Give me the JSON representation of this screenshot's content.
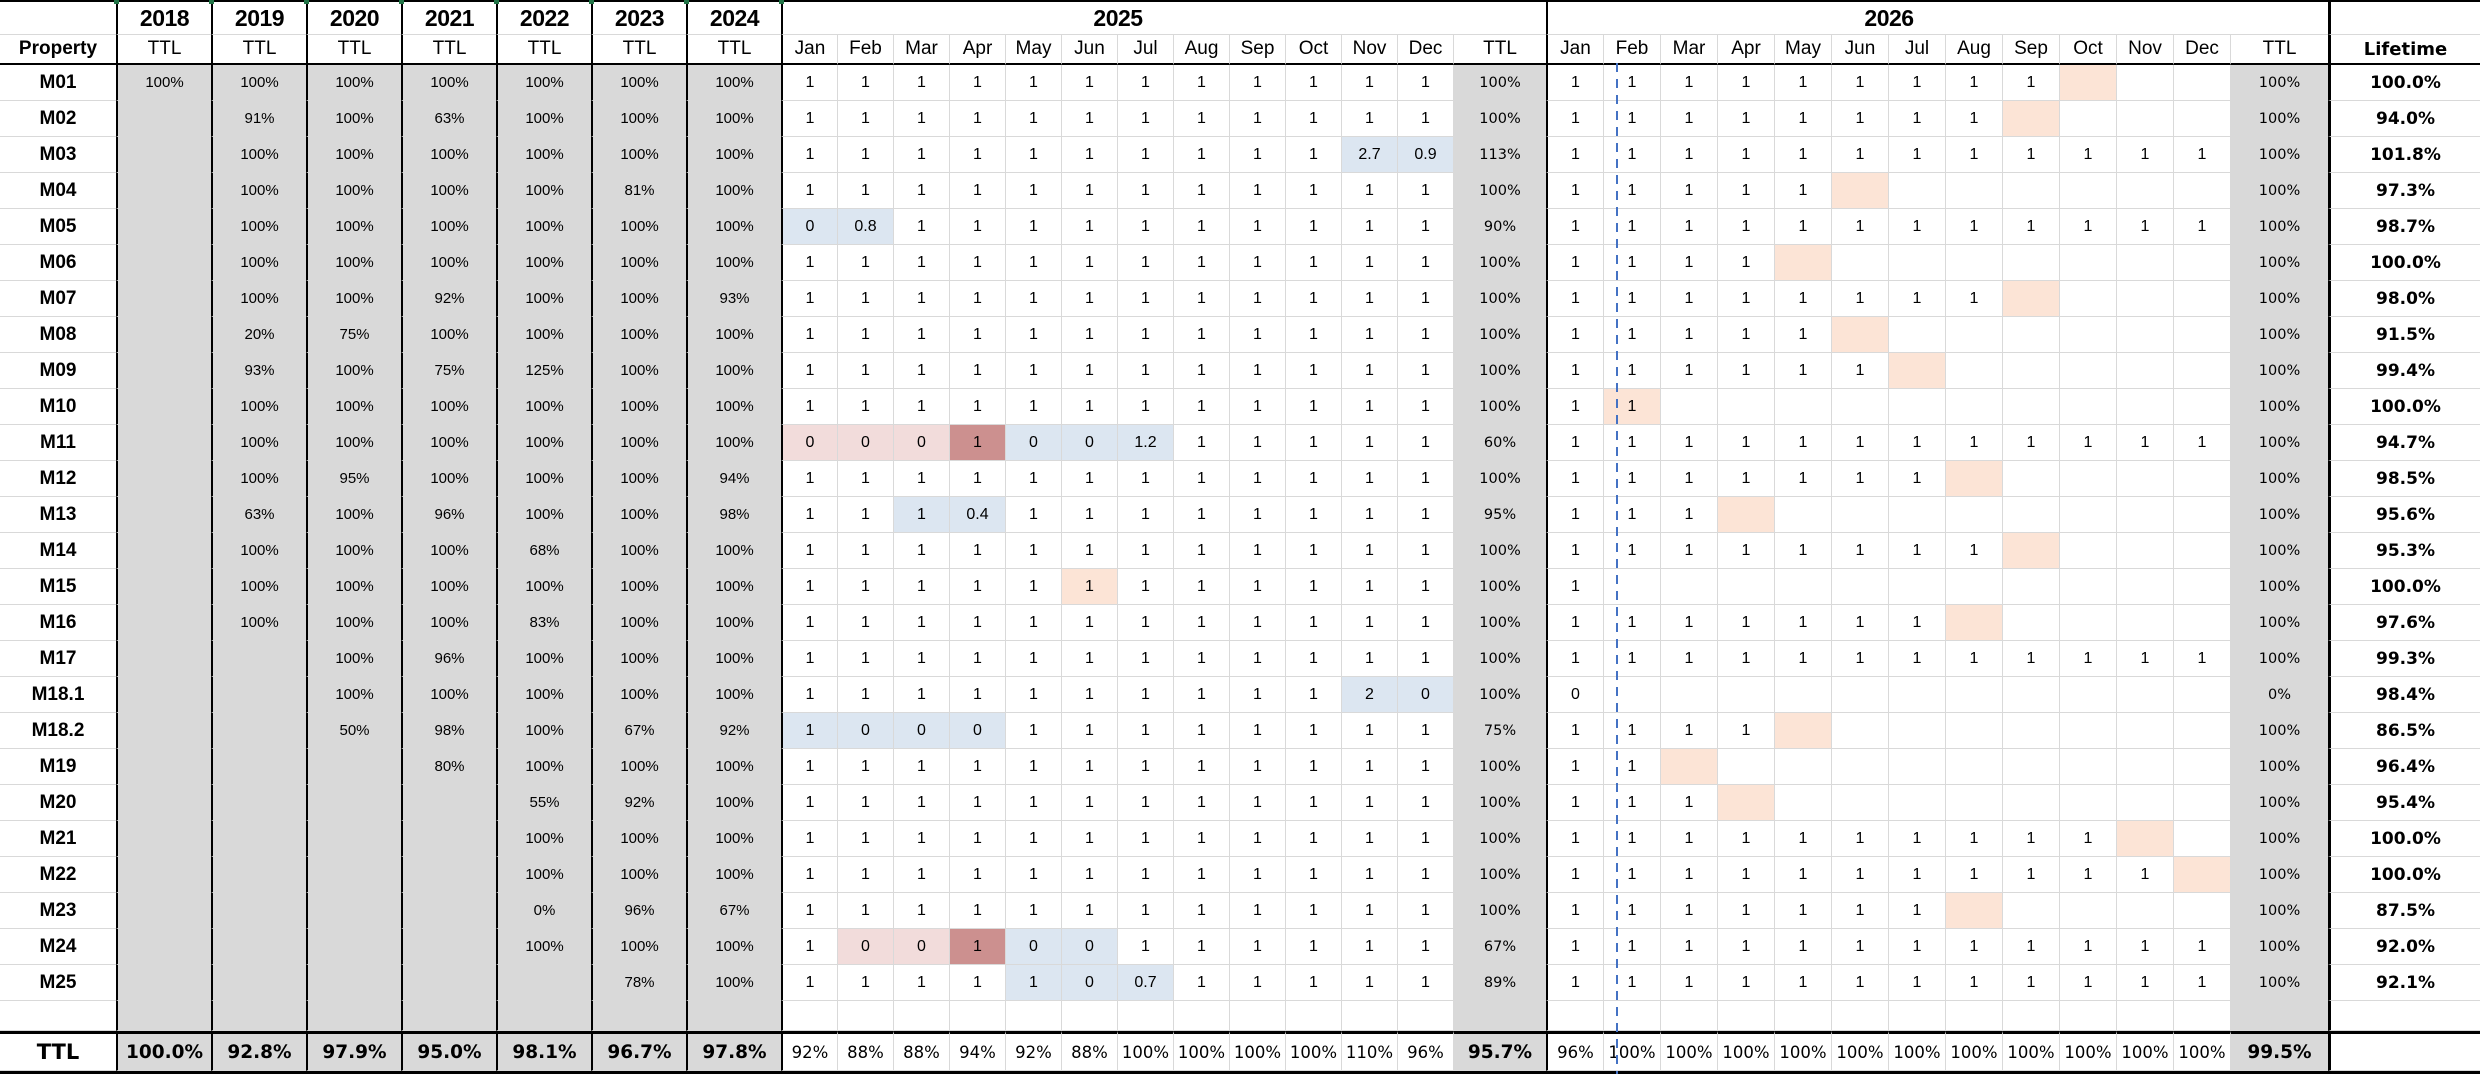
{
  "header": {
    "property": "Property",
    "years": [
      "2018",
      "2019",
      "2020",
      "2021",
      "2022",
      "2023",
      "2024"
    ],
    "year_sub": "TTL",
    "group_2025": "2025",
    "group_2026": "2026",
    "months": [
      "Jan",
      "Feb",
      "Mar",
      "Apr",
      "May",
      "Jun",
      "Jul",
      "Aug",
      "Sep",
      "Oct",
      "Nov",
      "Dec"
    ],
    "ttl": "TTL",
    "lifetime": "Lifetime"
  },
  "colors": {
    "blue": "#dce6f1",
    "pink": "#f2dcdb",
    "rose": "#cc908f",
    "peach": "#fce4d6",
    "dash": "#4472c4",
    "tick": "#217346"
  },
  "rows": [
    {
      "property": "M01",
      "years": [
        "100%",
        "100%",
        "100%",
        "100%",
        "100%",
        "100%",
        "100%"
      ],
      "m25": [
        "1",
        "1",
        "1",
        "1",
        "1",
        "1",
        "1",
        "1",
        "1",
        "1",
        "1",
        "1"
      ],
      "hl25": {},
      "ttl25": "100%",
      "m26": [
        "1",
        "1",
        "1",
        "1",
        "1",
        "1",
        "1",
        "1",
        "1",
        "",
        "",
        ""
      ],
      "hl26": {
        "9": "peach"
      },
      "ttl26": "100%",
      "life": "100.0%"
    },
    {
      "property": "M02",
      "years": [
        "",
        "91%",
        "100%",
        "63%",
        "100%",
        "100%",
        "100%"
      ],
      "m25": [
        "1",
        "1",
        "1",
        "1",
        "1",
        "1",
        "1",
        "1",
        "1",
        "1",
        "1",
        "1"
      ],
      "hl25": {},
      "ttl25": "100%",
      "m26": [
        "1",
        "1",
        "1",
        "1",
        "1",
        "1",
        "1",
        "1",
        "",
        "",
        "",
        ""
      ],
      "hl26": {
        "8": "peach"
      },
      "ttl26": "100%",
      "life": "94.0%"
    },
    {
      "property": "M03",
      "years": [
        "",
        "100%",
        "100%",
        "100%",
        "100%",
        "100%",
        "100%"
      ],
      "m25": [
        "1",
        "1",
        "1",
        "1",
        "1",
        "1",
        "1",
        "1",
        "1",
        "1",
        "2.7",
        "0.9"
      ],
      "hl25": {
        "10": "blue",
        "11": "blue"
      },
      "ttl25": "113%",
      "m26": [
        "1",
        "1",
        "1",
        "1",
        "1",
        "1",
        "1",
        "1",
        "1",
        "1",
        "1",
        "1"
      ],
      "hl26": {},
      "ttl26": "100%",
      "life": "101.8%"
    },
    {
      "property": "M04",
      "years": [
        "",
        "100%",
        "100%",
        "100%",
        "100%",
        "81%",
        "100%"
      ],
      "m25": [
        "1",
        "1",
        "1",
        "1",
        "1",
        "1",
        "1",
        "1",
        "1",
        "1",
        "1",
        "1"
      ],
      "hl25": {},
      "ttl25": "100%",
      "m26": [
        "1",
        "1",
        "1",
        "1",
        "1",
        "",
        "",
        "",
        "",
        "",
        "",
        ""
      ],
      "hl26": {
        "5": "peach"
      },
      "ttl26": "100%",
      "life": "97.3%"
    },
    {
      "property": "M05",
      "years": [
        "",
        "100%",
        "100%",
        "100%",
        "100%",
        "100%",
        "100%"
      ],
      "m25": [
        "0",
        "0.8",
        "1",
        "1",
        "1",
        "1",
        "1",
        "1",
        "1",
        "1",
        "1",
        "1"
      ],
      "hl25": {
        "0": "blue",
        "1": "blue"
      },
      "ttl25": "90%",
      "m26": [
        "1",
        "1",
        "1",
        "1",
        "1",
        "1",
        "1",
        "1",
        "1",
        "1",
        "1",
        "1"
      ],
      "hl26": {},
      "ttl26": "100%",
      "life": "98.7%"
    },
    {
      "property": "M06",
      "years": [
        "",
        "100%",
        "100%",
        "100%",
        "100%",
        "100%",
        "100%"
      ],
      "m25": [
        "1",
        "1",
        "1",
        "1",
        "1",
        "1",
        "1",
        "1",
        "1",
        "1",
        "1",
        "1"
      ],
      "hl25": {},
      "ttl25": "100%",
      "m26": [
        "1",
        "1",
        "1",
        "1",
        "",
        "",
        "",
        "",
        "",
        "",
        "",
        ""
      ],
      "hl26": {
        "4": "peach"
      },
      "ttl26": "100%",
      "life": "100.0%"
    },
    {
      "property": "M07",
      "years": [
        "",
        "100%",
        "100%",
        "92%",
        "100%",
        "100%",
        "93%"
      ],
      "m25": [
        "1",
        "1",
        "1",
        "1",
        "1",
        "1",
        "1",
        "1",
        "1",
        "1",
        "1",
        "1"
      ],
      "hl25": {},
      "ttl25": "100%",
      "m26": [
        "1",
        "1",
        "1",
        "1",
        "1",
        "1",
        "1",
        "1",
        "",
        "",
        "",
        ""
      ],
      "hl26": {
        "8": "peach"
      },
      "ttl26": "100%",
      "life": "98.0%"
    },
    {
      "property": "M08",
      "years": [
        "",
        "20%",
        "75%",
        "100%",
        "100%",
        "100%",
        "100%"
      ],
      "m25": [
        "1",
        "1",
        "1",
        "1",
        "1",
        "1",
        "1",
        "1",
        "1",
        "1",
        "1",
        "1"
      ],
      "hl25": {},
      "ttl25": "100%",
      "m26": [
        "1",
        "1",
        "1",
        "1",
        "1",
        "",
        "",
        "",
        "",
        "",
        "",
        ""
      ],
      "hl26": {
        "5": "peach"
      },
      "ttl26": "100%",
      "life": "91.5%"
    },
    {
      "property": "M09",
      "years": [
        "",
        "93%",
        "100%",
        "75%",
        "125%",
        "100%",
        "100%"
      ],
      "m25": [
        "1",
        "1",
        "1",
        "1",
        "1",
        "1",
        "1",
        "1",
        "1",
        "1",
        "1",
        "1"
      ],
      "hl25": {},
      "ttl25": "100%",
      "m26": [
        "1",
        "1",
        "1",
        "1",
        "1",
        "1",
        "",
        "",
        "",
        "",
        "",
        ""
      ],
      "hl26": {
        "6": "peach"
      },
      "ttl26": "100%",
      "life": "99.4%"
    },
    {
      "property": "M10",
      "years": [
        "",
        "100%",
        "100%",
        "100%",
        "100%",
        "100%",
        "100%"
      ],
      "m25": [
        "1",
        "1",
        "1",
        "1",
        "1",
        "1",
        "1",
        "1",
        "1",
        "1",
        "1",
        "1"
      ],
      "hl25": {},
      "ttl25": "100%",
      "m26": [
        "1",
        "1",
        "",
        "",
        "",
        "",
        "",
        "",
        "",
        "",
        "",
        ""
      ],
      "hl26": {
        "1": "peach"
      },
      "ttl26": "100%",
      "life": "100.0%"
    },
    {
      "property": "M11",
      "years": [
        "",
        "100%",
        "100%",
        "100%",
        "100%",
        "100%",
        "100%"
      ],
      "m25": [
        "0",
        "0",
        "0",
        "1",
        "0",
        "0",
        "1.2",
        "1",
        "1",
        "1",
        "1",
        "1"
      ],
      "hl25": {
        "0": "pink",
        "1": "pink",
        "2": "pink",
        "3": "rose",
        "4": "blue",
        "5": "blue",
        "6": "blue"
      },
      "ttl25": "60%",
      "m26": [
        "1",
        "1",
        "1",
        "1",
        "1",
        "1",
        "1",
        "1",
        "1",
        "1",
        "1",
        "1"
      ],
      "hl26": {},
      "ttl26": "100%",
      "life": "94.7%"
    },
    {
      "property": "M12",
      "years": [
        "",
        "100%",
        "95%",
        "100%",
        "100%",
        "100%",
        "94%"
      ],
      "m25": [
        "1",
        "1",
        "1",
        "1",
        "1",
        "1",
        "1",
        "1",
        "1",
        "1",
        "1",
        "1"
      ],
      "hl25": {},
      "ttl25": "100%",
      "m26": [
        "1",
        "1",
        "1",
        "1",
        "1",
        "1",
        "1",
        "",
        "",
        "",
        "",
        ""
      ],
      "hl26": {
        "7": "peach"
      },
      "ttl26": "100%",
      "life": "98.5%"
    },
    {
      "property": "M13",
      "years": [
        "",
        "63%",
        "100%",
        "96%",
        "100%",
        "100%",
        "98%"
      ],
      "m25": [
        "1",
        "1",
        "1",
        "0.4",
        "1",
        "1",
        "1",
        "1",
        "1",
        "1",
        "1",
        "1"
      ],
      "hl25": {
        "2": "blue",
        "3": "blue"
      },
      "ttl25": "95%",
      "m26": [
        "1",
        "1",
        "1",
        "",
        "",
        "",
        "",
        "",
        "",
        "",
        "",
        ""
      ],
      "hl26": {
        "3": "peach"
      },
      "ttl26": "100%",
      "life": "95.6%"
    },
    {
      "property": "M14",
      "years": [
        "",
        "100%",
        "100%",
        "100%",
        "68%",
        "100%",
        "100%"
      ],
      "m25": [
        "1",
        "1",
        "1",
        "1",
        "1",
        "1",
        "1",
        "1",
        "1",
        "1",
        "1",
        "1"
      ],
      "hl25": {},
      "ttl25": "100%",
      "m26": [
        "1",
        "1",
        "1",
        "1",
        "1",
        "1",
        "1",
        "1",
        "",
        "",
        "",
        ""
      ],
      "hl26": {
        "8": "peach"
      },
      "ttl26": "100%",
      "life": "95.3%"
    },
    {
      "property": "M15",
      "years": [
        "",
        "100%",
        "100%",
        "100%",
        "100%",
        "100%",
        "100%"
      ],
      "m25": [
        "1",
        "1",
        "1",
        "1",
        "1",
        "1",
        "1",
        "1",
        "1",
        "1",
        "1",
        "1"
      ],
      "hl25": {
        "5": "peach"
      },
      "ttl25": "100%",
      "m26": [
        "1",
        "",
        "",
        "",
        "",
        "",
        "",
        "",
        "",
        "",
        "",
        ""
      ],
      "hl26": {},
      "ttl26": "100%",
      "life": "100.0%"
    },
    {
      "property": "M16",
      "years": [
        "",
        "100%",
        "100%",
        "100%",
        "83%",
        "100%",
        "100%"
      ],
      "m25": [
        "1",
        "1",
        "1",
        "1",
        "1",
        "1",
        "1",
        "1",
        "1",
        "1",
        "1",
        "1"
      ],
      "hl25": {},
      "ttl25": "100%",
      "m26": [
        "1",
        "1",
        "1",
        "1",
        "1",
        "1",
        "1",
        "",
        "",
        "",
        "",
        ""
      ],
      "hl26": {
        "7": "peach"
      },
      "ttl26": "100%",
      "life": "97.6%"
    },
    {
      "property": "M17",
      "years": [
        "",
        "",
        "100%",
        "96%",
        "100%",
        "100%",
        "100%"
      ],
      "m25": [
        "1",
        "1",
        "1",
        "1",
        "1",
        "1",
        "1",
        "1",
        "1",
        "1",
        "1",
        "1"
      ],
      "hl25": {},
      "ttl25": "100%",
      "m26": [
        "1",
        "1",
        "1",
        "1",
        "1",
        "1",
        "1",
        "1",
        "1",
        "1",
        "1",
        "1"
      ],
      "hl26": {},
      "ttl26": "100%",
      "life": "99.3%"
    },
    {
      "property": "M18.1",
      "years": [
        "",
        "",
        "100%",
        "100%",
        "100%",
        "100%",
        "100%"
      ],
      "m25": [
        "1",
        "1",
        "1",
        "1",
        "1",
        "1",
        "1",
        "1",
        "1",
        "1",
        "2",
        "0"
      ],
      "hl25": {
        "10": "blue",
        "11": "blue"
      },
      "ttl25": "100%",
      "m26": [
        "0",
        "",
        "",
        "",
        "",
        "",
        "",
        "",
        "",
        "",
        "",
        ""
      ],
      "hl26": {},
      "ttl26": "0%",
      "life": "98.4%"
    },
    {
      "property": "M18.2",
      "years": [
        "",
        "",
        "50%",
        "98%",
        "100%",
        "67%",
        "92%"
      ],
      "m25": [
        "1",
        "0",
        "0",
        "0",
        "1",
        "1",
        "1",
        "1",
        "1",
        "1",
        "1",
        "1"
      ],
      "hl25": {
        "0": "blue",
        "1": "blue",
        "2": "blue",
        "3": "blue"
      },
      "ttl25": "75%",
      "m26": [
        "1",
        "1",
        "1",
        "1",
        "",
        "",
        "",
        "",
        "",
        "",
        "",
        ""
      ],
      "hl26": {
        "4": "peach"
      },
      "ttl26": "100%",
      "life": "86.5%"
    },
    {
      "property": "M19",
      "years": [
        "",
        "",
        "",
        "80%",
        "100%",
        "100%",
        "100%"
      ],
      "m25": [
        "1",
        "1",
        "1",
        "1",
        "1",
        "1",
        "1",
        "1",
        "1",
        "1",
        "1",
        "1"
      ],
      "hl25": {},
      "ttl25": "100%",
      "m26": [
        "1",
        "1",
        "",
        "",
        "",
        "",
        "",
        "",
        "",
        "",
        "",
        ""
      ],
      "hl26": {
        "2": "peach"
      },
      "ttl26": "100%",
      "life": "96.4%"
    },
    {
      "property": "M20",
      "years": [
        "",
        "",
        "",
        "",
        "55%",
        "92%",
        "100%"
      ],
      "m25": [
        "1",
        "1",
        "1",
        "1",
        "1",
        "1",
        "1",
        "1",
        "1",
        "1",
        "1",
        "1"
      ],
      "hl25": {},
      "ttl25": "100%",
      "m26": [
        "1",
        "1",
        "1",
        "",
        "",
        "",
        "",
        "",
        "",
        "",
        "",
        ""
      ],
      "hl26": {
        "3": "peach"
      },
      "ttl26": "100%",
      "life": "95.4%"
    },
    {
      "property": "M21",
      "years": [
        "",
        "",
        "",
        "",
        "100%",
        "100%",
        "100%"
      ],
      "m25": [
        "1",
        "1",
        "1",
        "1",
        "1",
        "1",
        "1",
        "1",
        "1",
        "1",
        "1",
        "1"
      ],
      "hl25": {},
      "ttl25": "100%",
      "m26": [
        "1",
        "1",
        "1",
        "1",
        "1",
        "1",
        "1",
        "1",
        "1",
        "1",
        "",
        ""
      ],
      "hl26": {
        "10": "peach"
      },
      "ttl26": "100%",
      "life": "100.0%"
    },
    {
      "property": "M22",
      "years": [
        "",
        "",
        "",
        "",
        "100%",
        "100%",
        "100%"
      ],
      "m25": [
        "1",
        "1",
        "1",
        "1",
        "1",
        "1",
        "1",
        "1",
        "1",
        "1",
        "1",
        "1"
      ],
      "hl25": {},
      "ttl25": "100%",
      "m26": [
        "1",
        "1",
        "1",
        "1",
        "1",
        "1",
        "1",
        "1",
        "1",
        "1",
        "1",
        ""
      ],
      "hl26": {
        "11": "peach"
      },
      "ttl26": "100%",
      "life": "100.0%"
    },
    {
      "property": "M23",
      "years": [
        "",
        "",
        "",
        "",
        "0%",
        "96%",
        "67%"
      ],
      "m25": [
        "1",
        "1",
        "1",
        "1",
        "1",
        "1",
        "1",
        "1",
        "1",
        "1",
        "1",
        "1"
      ],
      "hl25": {},
      "ttl25": "100%",
      "m26": [
        "1",
        "1",
        "1",
        "1",
        "1",
        "1",
        "1",
        "",
        "",
        "",
        "",
        ""
      ],
      "hl26": {
        "7": "peach"
      },
      "ttl26": "100%",
      "life": "87.5%"
    },
    {
      "property": "M24",
      "years": [
        "",
        "",
        "",
        "",
        "100%",
        "100%",
        "100%"
      ],
      "m25": [
        "1",
        "0",
        "0",
        "1",
        "0",
        "0",
        "1",
        "1",
        "1",
        "1",
        "1",
        "1"
      ],
      "hl25": {
        "1": "pink",
        "2": "pink",
        "3": "rose",
        "4": "blue",
        "5": "blue"
      },
      "ttl25": "67%",
      "m26": [
        "1",
        "1",
        "1",
        "1",
        "1",
        "1",
        "1",
        "1",
        "1",
        "1",
        "1",
        "1"
      ],
      "hl26": {},
      "ttl26": "100%",
      "life": "92.0%"
    },
    {
      "property": "M25",
      "years": [
        "",
        "",
        "",
        "",
        "",
        "78%",
        "100%"
      ],
      "m25": [
        "1",
        "1",
        "1",
        "1",
        "1",
        "0",
        "0.7",
        "1",
        "1",
        "1",
        "1",
        "1"
      ],
      "hl25": {
        "4": "blue",
        "5": "blue",
        "6": "blue"
      },
      "ttl25": "89%",
      "m26": [
        "1",
        "1",
        "1",
        "1",
        "1",
        "1",
        "1",
        "1",
        "1",
        "1",
        "1",
        "1"
      ],
      "hl26": {},
      "ttl26": "100%",
      "life": "92.1%"
    }
  ],
  "totals": {
    "label": "TTL",
    "years": [
      "100.0%",
      "92.8%",
      "97.9%",
      "95.0%",
      "98.1%",
      "96.7%",
      "97.8%"
    ],
    "m2025": [
      "92%",
      "88%",
      "88%",
      "94%",
      "92%",
      "88%",
      "100%",
      "100%",
      "100%",
      "100%",
      "110%",
      "96%"
    ],
    "ttl2025": "95.7%",
    "m2026": [
      "96%",
      "100%",
      "100%",
      "100%",
      "100%",
      "100%",
      "100%",
      "100%",
      "100%",
      "100%",
      "100%",
      "100%"
    ],
    "ttl2026": "99.5%",
    "life": ""
  }
}
